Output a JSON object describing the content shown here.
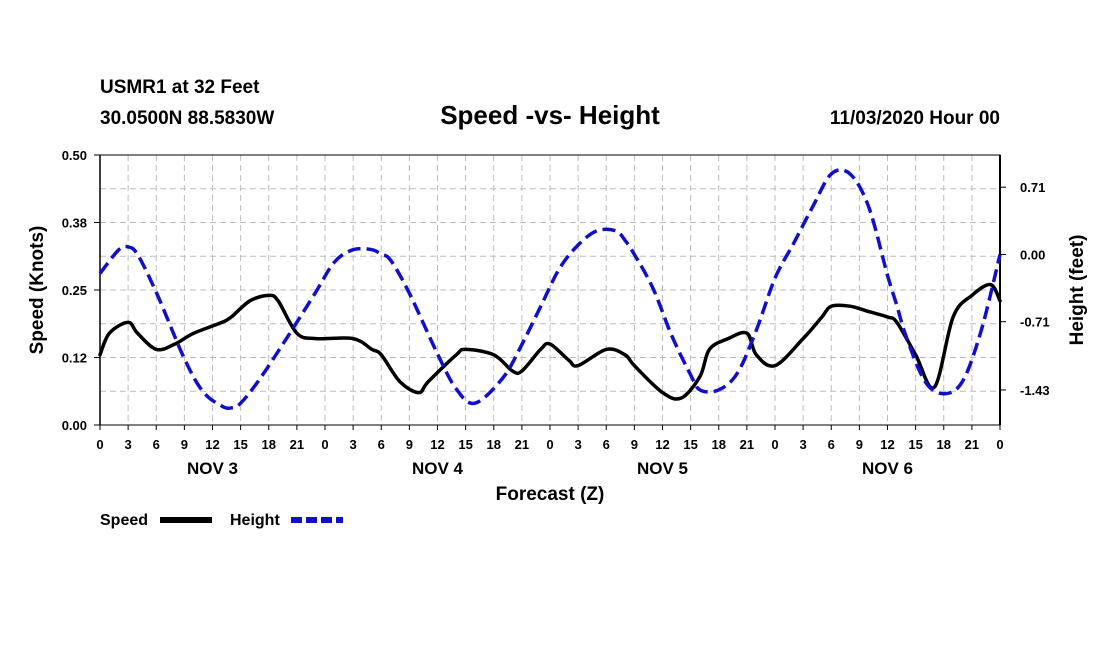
{
  "header": {
    "station": "USMR1 at 32 Feet",
    "coords": "30.0500N 88.5830W",
    "title": "Speed -vs- Height",
    "date": "11/03/2020 Hour 00"
  },
  "chart_data": {
    "type": "line",
    "title": "Speed -vs- Height",
    "xlabel": "Forecast (Z)",
    "ylabel_left": "Speed (Knots)",
    "ylabel_right": "Height (feet)",
    "x_range_hours": [
      0,
      96
    ],
    "ylim_left": [
      0.0,
      0.5
    ],
    "ylim_right": [
      -1.8,
      1.05
    ],
    "left_ticks": [
      "0.00",
      "0.12",
      "0.25",
      "0.38",
      "0.50"
    ],
    "left_tick_values": [
      0.0,
      0.125,
      0.25,
      0.375,
      0.5
    ],
    "right_ticks": [
      "-1.43",
      "-0.71",
      "0.00",
      "0.71"
    ],
    "right_tick_values": [
      -1.43,
      -0.71,
      0.0,
      0.71
    ],
    "x_tick_labels": [
      "0",
      "3",
      "6",
      "9",
      "12",
      "15",
      "18",
      "21",
      "0",
      "3",
      "6",
      "9",
      "12",
      "15",
      "18",
      "21",
      "0",
      "3",
      "6",
      "9",
      "12",
      "15",
      "18",
      "21",
      "0",
      "3",
      "6",
      "9",
      "12",
      "15",
      "18",
      "21",
      "0"
    ],
    "day_labels": [
      "NOV 3",
      "NOV 4",
      "NOV 5",
      "NOV 6"
    ],
    "grid": true,
    "series": [
      {
        "name": "Speed",
        "axis": "left",
        "color": "#000000",
        "style": "solid",
        "x": [
          0,
          1,
          3,
          4,
          6,
          8,
          10,
          13,
          14,
          16,
          18,
          19,
          21,
          23,
          27,
          29,
          30,
          32,
          34,
          35,
          38,
          39,
          42,
          44,
          45,
          47,
          48,
          50,
          51,
          54,
          56,
          57,
          60,
          62,
          64,
          65,
          67,
          69,
          70,
          72,
          75,
          77,
          78,
          80,
          82,
          84,
          85,
          87,
          89,
          91,
          93,
          95,
          96
        ],
        "y": [
          0.13,
          0.17,
          0.19,
          0.17,
          0.14,
          0.15,
          0.17,
          0.19,
          0.2,
          0.23,
          0.24,
          0.23,
          0.17,
          0.16,
          0.16,
          0.14,
          0.13,
          0.08,
          0.06,
          0.08,
          0.13,
          0.14,
          0.13,
          0.1,
          0.1,
          0.14,
          0.15,
          0.12,
          0.11,
          0.14,
          0.13,
          0.11,
          0.06,
          0.05,
          0.09,
          0.14,
          0.16,
          0.17,
          0.13,
          0.11,
          0.16,
          0.2,
          0.22,
          0.22,
          0.21,
          0.2,
          0.19,
          0.13,
          0.07,
          0.2,
          0.24,
          0.26,
          0.23
        ]
      },
      {
        "name": "Height",
        "axis": "right",
        "color": "#1010cc",
        "style": "dashed",
        "x": [
          0,
          2,
          3,
          4,
          6,
          9,
          11,
          13,
          14,
          15,
          17,
          20,
          23,
          25,
          27,
          29,
          30,
          31,
          33,
          36,
          38,
          40,
          43,
          45,
          47,
          49,
          51,
          53,
          55,
          56,
          57,
          59,
          61,
          63,
          64,
          66,
          68,
          70,
          72,
          74,
          76,
          78,
          80,
          82,
          84,
          85,
          86,
          88,
          90,
          92,
          94,
          96
        ],
        "y": [
          -0.2,
          0.05,
          0.08,
          0.0,
          -0.4,
          -1.1,
          -1.45,
          -1.6,
          -1.62,
          -1.57,
          -1.32,
          -0.87,
          -0.4,
          -0.08,
          0.05,
          0.05,
          0.0,
          -0.06,
          -0.41,
          -1.05,
          -1.42,
          -1.57,
          -1.3,
          -0.95,
          -0.55,
          -0.15,
          0.1,
          0.25,
          0.25,
          0.15,
          0.0,
          -0.36,
          -0.86,
          -1.27,
          -1.43,
          -1.43,
          -1.25,
          -0.8,
          -0.25,
          0.12,
          0.5,
          0.85,
          0.85,
          0.5,
          -0.22,
          -0.54,
          -0.87,
          -1.34,
          -1.47,
          -1.34,
          -0.8,
          0.0
        ]
      }
    ]
  },
  "legend": {
    "speed_label": "Speed",
    "height_label": "Height",
    "speed_color": "#000000",
    "height_color": "#1010cc"
  }
}
